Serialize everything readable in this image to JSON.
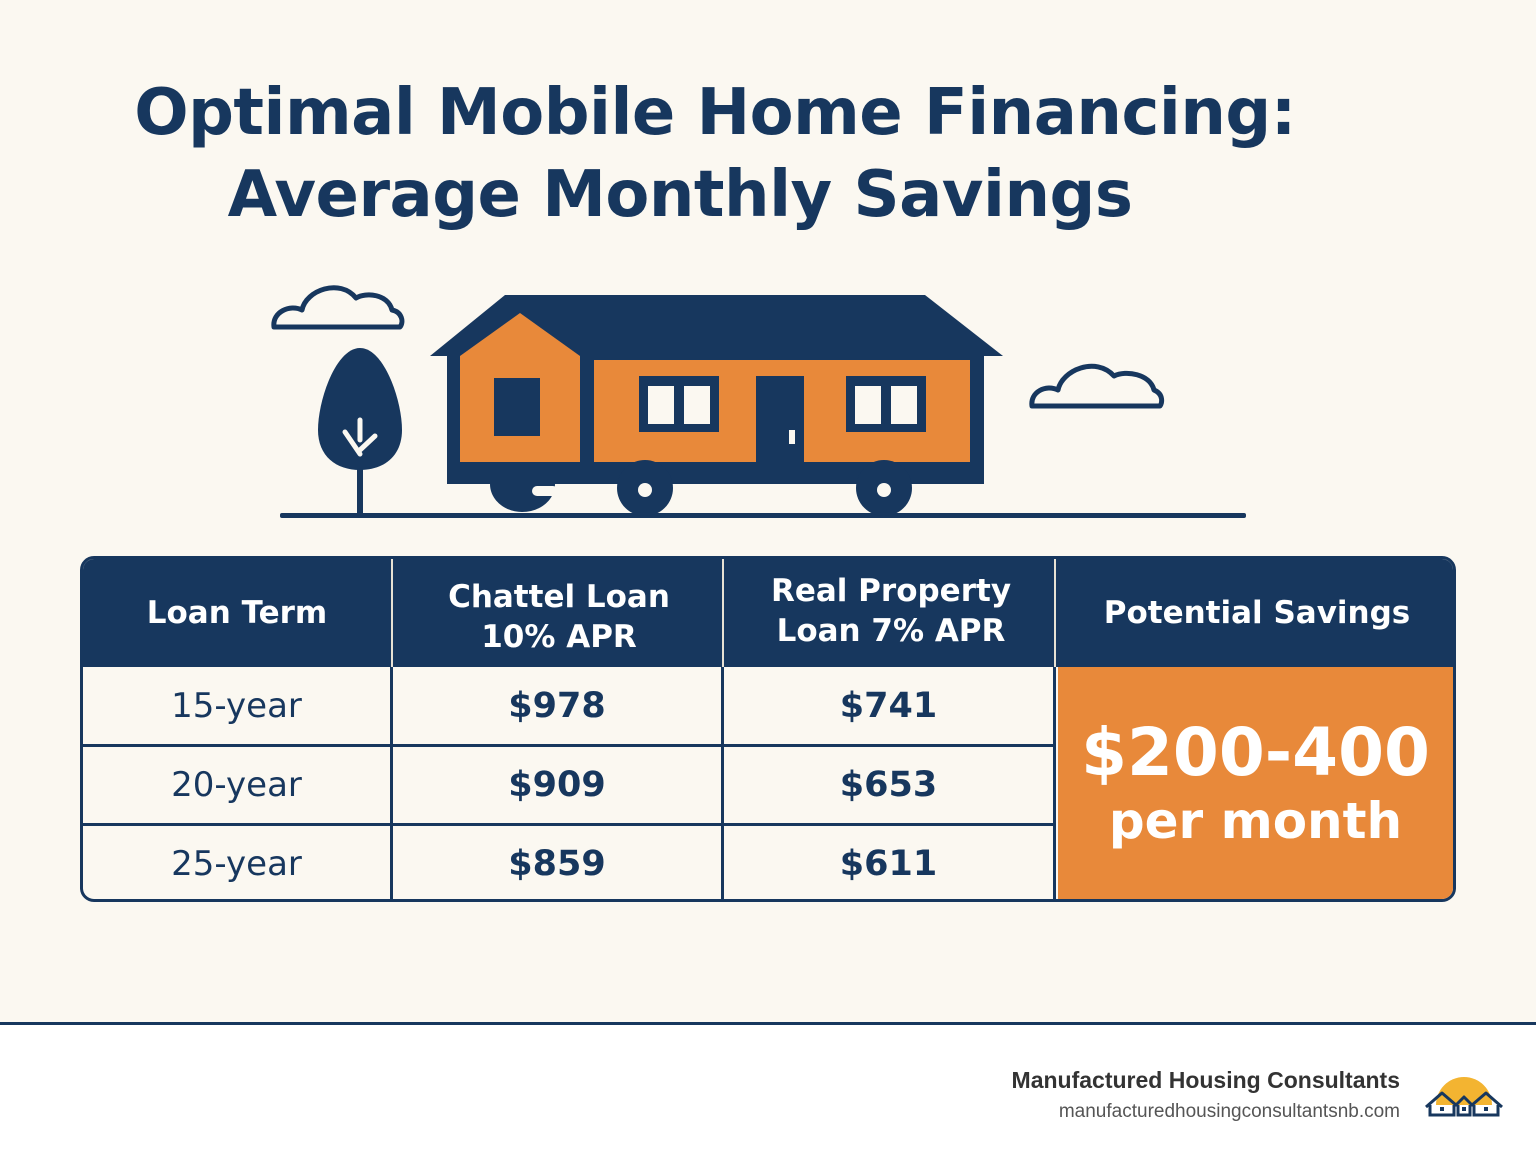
{
  "title": {
    "line1": "Optimal Mobile Home Financing:",
    "line2": "Average Monthly Savings"
  },
  "table": {
    "headers": [
      "Loan Term",
      "Chattel Loan\n10% APR",
      "Real Property\nLoan 7% APR",
      "Potential Savings"
    ],
    "rows": [
      {
        "term": "15-year",
        "chattel": "$978",
        "real": "$741"
      },
      {
        "term": "20-year",
        "chattel": "$909",
        "real": "$653"
      },
      {
        "term": "25-year",
        "chattel": "$859",
        "real": "$611"
      }
    ],
    "savings": {
      "amount": "$200-400",
      "period": "per month"
    }
  },
  "footer": {
    "company": "Manufactured Housing Consultants",
    "url": "manufacturedhousingconsultantsnb.com"
  },
  "colors": {
    "navy": "#17375e",
    "orange": "#e8893a",
    "background": "#fbf8f1"
  },
  "icons": [
    "cloud-icon",
    "tree-icon",
    "mobile-home-icon",
    "logo-houses-sun-icon"
  ]
}
